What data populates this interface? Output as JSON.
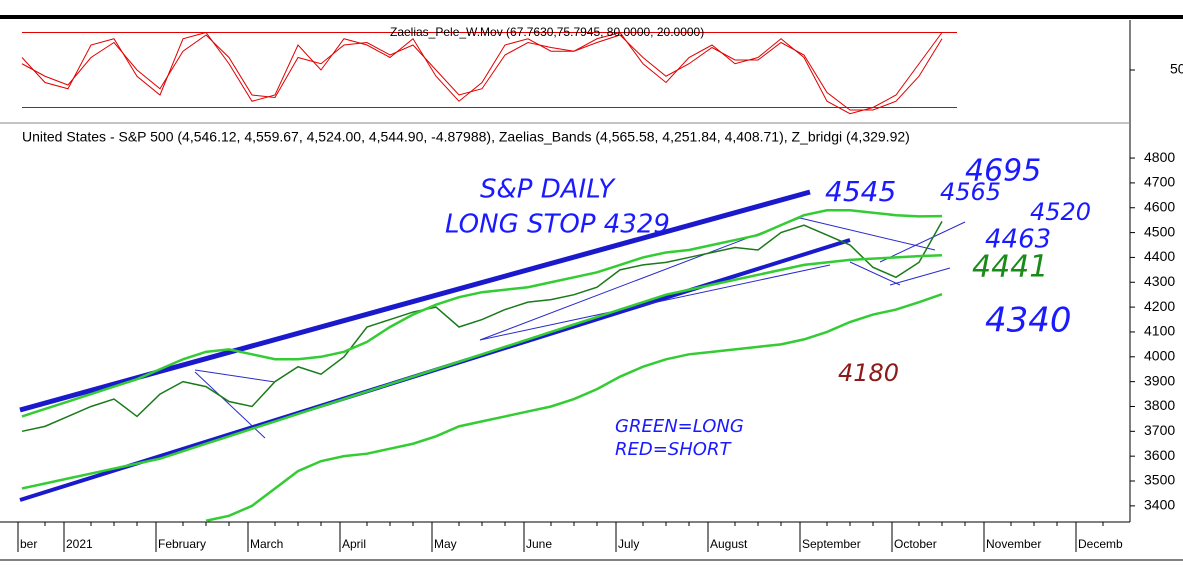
{
  "chart_data": [
    {
      "type": "line",
      "title": "Zaelias_Pele_W.Mov (67.7630,75.7945, 80.0000, 20.0000)",
      "ylim": [
        10,
        90
      ],
      "yticks": [
        50
      ],
      "reference_lines": [
        80,
        20
      ],
      "reference_color": "#e00000",
      "series": [
        {
          "color": "#e00000",
          "values": [
            60,
            40,
            35,
            70,
            75,
            45,
            30,
            75,
            80,
            55,
            25,
            30,
            70,
            50,
            75,
            70,
            60,
            75,
            45,
            25,
            40,
            70,
            75,
            65,
            65,
            75,
            80,
            55,
            40,
            60,
            70,
            55,
            60,
            75,
            60,
            25,
            15,
            20,
            30,
            55,
            80,
            null,
            null,
            null,
            null,
            null,
            null,
            null
          ]
        },
        {
          "color": "#e00000",
          "values": [
            55,
            45,
            38,
            60,
            72,
            50,
            35,
            65,
            78,
            60,
            30,
            28,
            60,
            55,
            70,
            72,
            62,
            70,
            50,
            30,
            35,
            62,
            72,
            68,
            65,
            72,
            78,
            60,
            45,
            55,
            68,
            58,
            58,
            72,
            62,
            32,
            18,
            18,
            25,
            45,
            75,
            null,
            null,
            null,
            null,
            null,
            null,
            null
          ]
        }
      ]
    },
    {
      "type": "line",
      "title": "United States - S&P 500 (4,546.12, 4,559.67, 4,524.00, 4,544.90, -4.87988), Zaelias_Bands (4,565.58, 4,251.84, 4,408.71), Z_bridgi (4,329.92)",
      "categories": [
        "ber",
        null,
        "2021",
        null,
        null,
        null,
        "February",
        null,
        null,
        null,
        "March",
        null,
        null,
        null,
        "April",
        null,
        null,
        null,
        "May",
        null,
        null,
        null,
        "June",
        null,
        null,
        null,
        "July",
        null,
        null,
        null,
        "August",
        null,
        null,
        null,
        "September",
        null,
        null,
        null,
        "October",
        null,
        null,
        null,
        "November",
        null,
        null,
        null,
        "Decemb",
        null
      ],
      "ylim": [
        3335,
        4925
      ],
      "yticks": [
        3400,
        3500,
        3600,
        3700,
        3800,
        3900,
        4000,
        4100,
        4200,
        4300,
        4400,
        4500,
        4600,
        4700,
        4800
      ],
      "series": [
        {
          "color": "#1a7a1a",
          "values": [
            3700,
            3720,
            3760,
            3800,
            3830,
            3760,
            3850,
            3900,
            3880,
            3820,
            3800,
            3900,
            3960,
            3930,
            4000,
            4120,
            4150,
            4180,
            4200,
            4120,
            4150,
            4190,
            4220,
            4230,
            4250,
            4280,
            4350,
            4370,
            4380,
            4400,
            4420,
            4440,
            4430,
            4500,
            4530,
            4490,
            4450,
            4360,
            4320,
            4380,
            4545,
            null,
            null,
            null,
            null,
            null,
            null,
            null
          ]
        },
        {
          "color": "#33cc33",
          "values": [
            3760,
            3790,
            3820,
            3850,
            3880,
            3910,
            3950,
            3990,
            4020,
            4030,
            4010,
            3990,
            3990,
            4000,
            4020,
            4060,
            4120,
            4170,
            4210,
            4240,
            4260,
            4270,
            4280,
            4300,
            4320,
            4340,
            4370,
            4400,
            4420,
            4430,
            4450,
            4470,
            4490,
            4530,
            4570,
            4590,
            4590,
            4580,
            4570,
            4565,
            4566,
            null,
            null,
            null,
            null,
            null,
            null,
            null
          ]
        },
        {
          "color": "#33cc33",
          "values": [
            3470,
            3490,
            3510,
            3530,
            3550,
            3570,
            3590,
            3620,
            3650,
            3680,
            3710,
            3740,
            3770,
            3800,
            3830,
            3860,
            3890,
            3920,
            3950,
            3980,
            4010,
            4040,
            4070,
            4100,
            4130,
            4160,
            4190,
            4220,
            4250,
            4270,
            4290,
            4310,
            4330,
            4350,
            4370,
            4380,
            4390,
            4395,
            4400,
            4405,
            4409,
            null,
            null,
            null,
            null,
            null,
            null,
            null
          ]
        },
        {
          "color": "#33cc33",
          "values": [
            null,
            null,
            null,
            null,
            null,
            null,
            null,
            null,
            3340,
            3360,
            3400,
            3470,
            3540,
            3580,
            3600,
            3610,
            3630,
            3650,
            3680,
            3720,
            3740,
            3760,
            3780,
            3800,
            3830,
            3870,
            3920,
            3960,
            3990,
            4010,
            4020,
            4030,
            4040,
            4050,
            4070,
            4100,
            4140,
            4170,
            4190,
            4220,
            4252,
            null,
            null,
            null,
            null,
            null,
            null,
            null
          ]
        }
      ],
      "annotations": [
        {
          "text": "S&P DAILY",
          "color": "#1a1aff"
        },
        {
          "text": "LONG STOP 4329",
          "color": "#1a1aff"
        },
        {
          "text": "4545",
          "color": "#1a1aff"
        },
        {
          "text": "4565",
          "color": "#1a1aff"
        },
        {
          "text": "4695",
          "color": "#1a1aff"
        },
        {
          "text": "4520",
          "color": "#1a1aff"
        },
        {
          "text": "4463",
          "color": "#1a1aff"
        },
        {
          "text": "4441",
          "color": "#1a8a1a"
        },
        {
          "text": "4340",
          "color": "#1a1aff"
        },
        {
          "text": "4180",
          "color": "#8b1a1a"
        },
        {
          "text": "GREEN=LONG",
          "color": "#1a1aff"
        },
        {
          "text": "RED=SHORT",
          "color": "#1a1aff"
        }
      ]
    }
  ]
}
